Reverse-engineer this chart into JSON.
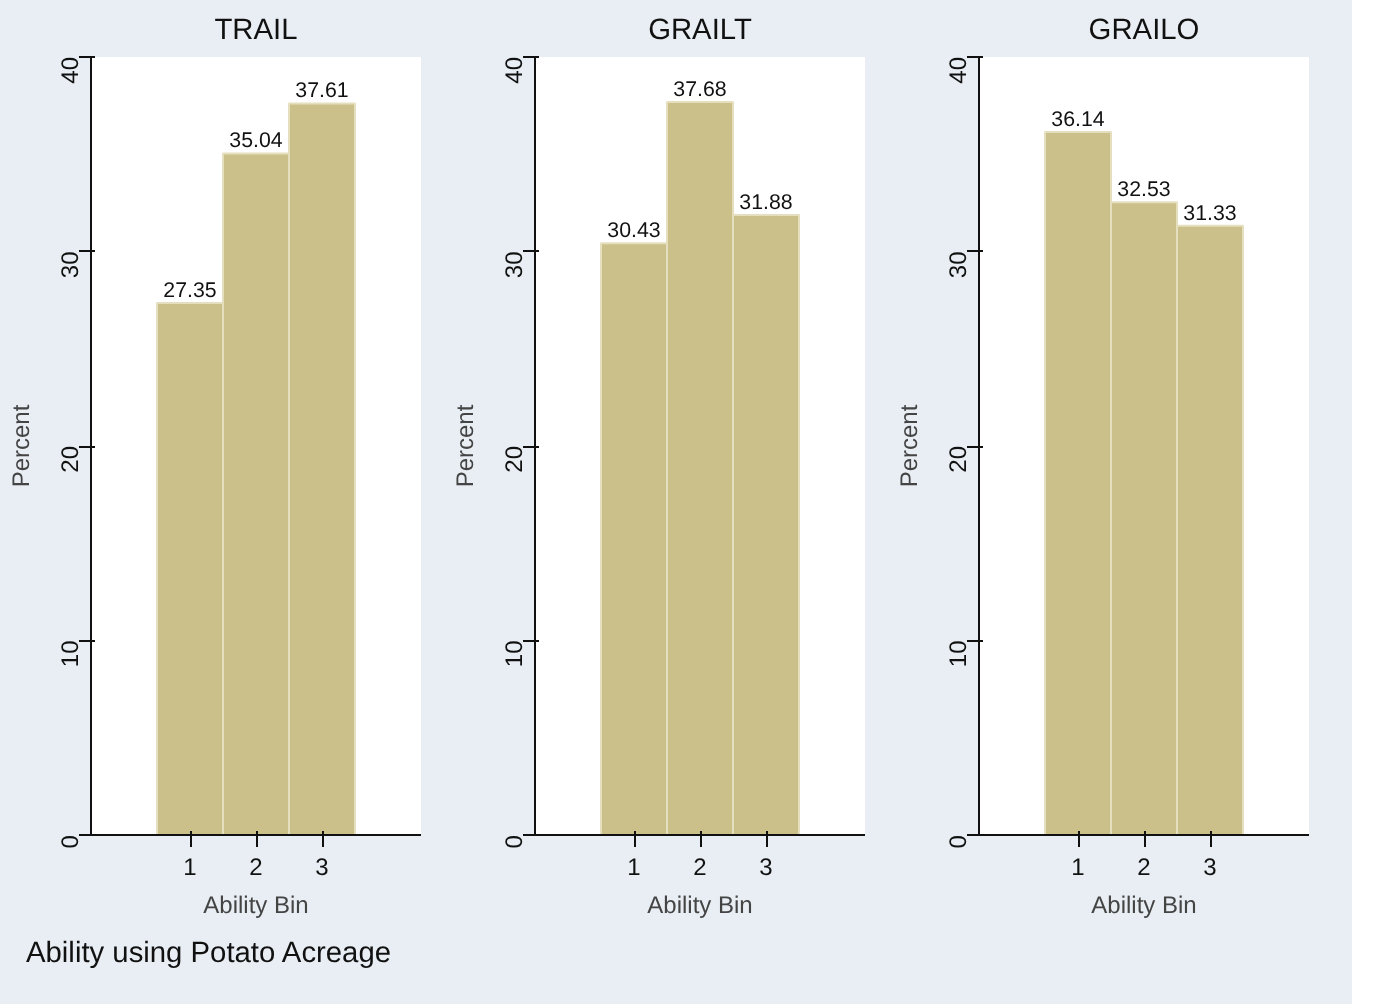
{
  "chart_data": [
    {
      "type": "bar",
      "title": "TRAIL",
      "xlabel": "Ability Bin",
      "ylabel": "Percent",
      "categories": [
        "1",
        "2",
        "3"
      ],
      "values": [
        27.35,
        35.04,
        37.61
      ],
      "color": "#ccc08a",
      "ylim": [
        0,
        40
      ],
      "yticks": [
        0,
        10,
        20,
        30,
        40
      ],
      "data_labels": true,
      "grid": false,
      "annotations": [
        "Ability using Potato Acreage"
      ]
    },
    {
      "type": "bar",
      "title": "GRAILT",
      "xlabel": "Ability Bin",
      "ylabel": "Percent",
      "categories": [
        "1",
        "2",
        "3"
      ],
      "values": [
        30.43,
        37.68,
        31.88
      ],
      "color": "#ccc08a",
      "ylim": [
        0,
        40
      ],
      "yticks": [
        0,
        10,
        20,
        30,
        40
      ],
      "data_labels": true,
      "grid": false
    },
    {
      "type": "bar",
      "title": "GRAILO",
      "xlabel": "Ability Bin",
      "ylabel": "Percent",
      "categories": [
        "1",
        "2",
        "3"
      ],
      "values": [
        36.14,
        32.53,
        31.33
      ],
      "color": "#ccc08a",
      "ylim": [
        0,
        40
      ],
      "yticks": [
        0,
        10,
        20,
        30,
        40
      ],
      "data_labels": true,
      "grid": false
    }
  ]
}
